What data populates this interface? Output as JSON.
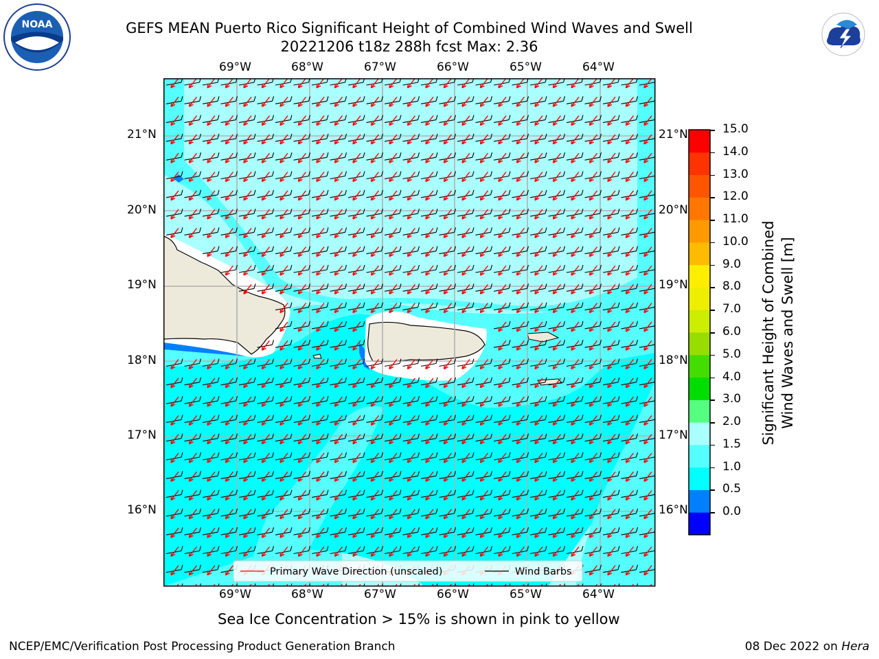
{
  "header": {
    "title_line1": "GEFS MEAN Puerto Rico Significant Height of Combined Wind Waves and Swell",
    "title_line2": "20221206 t18z 288h fcst   Max: 2.36"
  },
  "logos": {
    "left": "NOAA",
    "right": "NATIONAL WEATHER SERVICE"
  },
  "map": {
    "lon_labels": [
      "69°W",
      "68°W",
      "67°W",
      "66°W",
      "65°W",
      "64°W"
    ],
    "lat_labels": [
      "21°N",
      "20°N",
      "19°N",
      "18°N",
      "17°N",
      "16°N"
    ],
    "legend": {
      "wave_label": "Primary Wave Direction (unscaled)",
      "barb_label": "Wind Barbs"
    },
    "colors": {
      "ocean_light": "#aaffff",
      "ocean_mid": "#55ffff",
      "ocean_cyan": "#00ffff",
      "ocean_blue": "#0080ff",
      "land": "#eeeadb",
      "wave_arrow": "#ff0000",
      "barb": "#000000"
    }
  },
  "colorbar": {
    "label_line1": "Significant Height of Combined",
    "label_line2": "Wind Waves and Swell [m]",
    "ticks": [
      "15.0",
      "14.0",
      "13.0",
      "12.0",
      "11.0",
      "10.0",
      "9.0",
      "8.0",
      "7.0",
      "6.0",
      "5.0",
      "4.0",
      "3.0",
      "2.0",
      "1.5",
      "1.0",
      "0.5",
      "0.0"
    ],
    "colors": [
      "#0000ff",
      "#0080ff",
      "#00ffff",
      "#55ffff",
      "#aaffff",
      "#55ff80",
      "#00dd00",
      "#44dd00",
      "#99dd00",
      "#ccee00",
      "#eeee00",
      "#ffee00",
      "#ffbb00",
      "#ff9900",
      "#ff7700",
      "#ff5500",
      "#ff3300",
      "#ff0000"
    ]
  },
  "footer": {
    "sea_ice_note": "Sea Ice Concentration > 15% is shown in pink to yellow",
    "credit": "NCEP/EMC/Verification Post Processing Product Generation Branch",
    "date": "08 Dec 2022 on ",
    "machine": "Hera"
  }
}
